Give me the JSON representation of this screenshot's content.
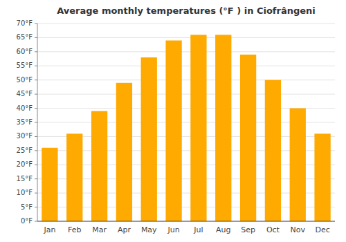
{
  "chart_data": {
    "type": "bar",
    "title": "Average monthly temperatures (°F ) in Ciofrângeni",
    "categories": [
      "Jan",
      "Feb",
      "Mar",
      "Apr",
      "May",
      "Jun",
      "Jul",
      "Aug",
      "Sep",
      "Oct",
      "Nov",
      "Dec"
    ],
    "values": [
      26,
      31,
      39,
      49,
      58,
      64,
      66,
      66,
      59,
      50,
      40,
      31
    ],
    "color": "#FFAA00",
    "ylim": [
      0,
      70
    ],
    "yticks": [
      {
        "value": 0,
        "label": "0°F"
      },
      {
        "value": 5,
        "label": "5°F"
      },
      {
        "value": 10,
        "label": "10°F"
      },
      {
        "value": 15,
        "label": "15°F"
      },
      {
        "value": 20,
        "label": "20°F"
      },
      {
        "value": 25,
        "label": "25°F"
      },
      {
        "value": 30,
        "label": "30°F"
      },
      {
        "value": 35,
        "label": "35°F"
      },
      {
        "value": 40,
        "label": "40°F"
      },
      {
        "value": 45,
        "label": "45°F"
      },
      {
        "value": 50,
        "label": "50°F"
      },
      {
        "value": 55,
        "label": "55°F"
      },
      {
        "value": 60,
        "label": "60°F"
      },
      {
        "value": 65,
        "label": "65°F"
      },
      {
        "value": 70,
        "label": "70°F"
      }
    ],
    "grid": true
  }
}
